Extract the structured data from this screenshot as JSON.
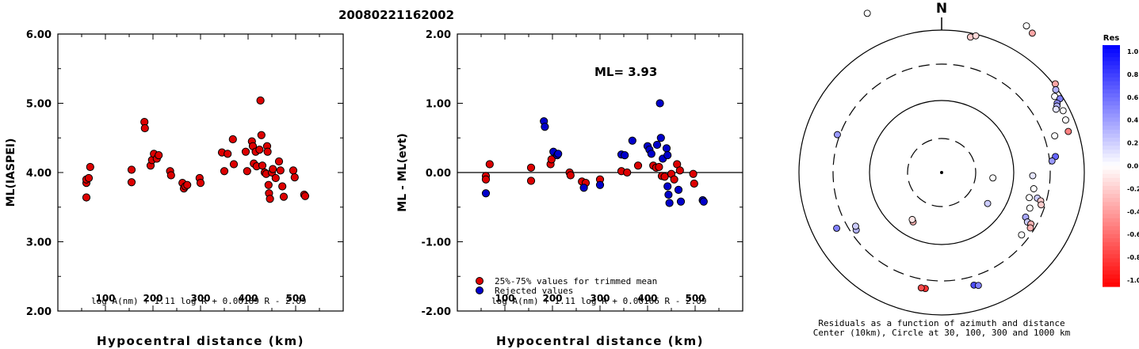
{
  "event_id": "20080221162002",
  "chart_data": [
    {
      "type": "scatter",
      "xlabel": "Hypocentral distance (km)",
      "ylabel": "ML(IASPEI)",
      "xlim": [
        0,
        600
      ],
      "ylim": [
        2.0,
        6.0
      ],
      "yticks": [
        "2.00",
        "3.00",
        "4.00",
        "5.00",
        "6.00"
      ],
      "xticks": [
        "100",
        "200",
        "300",
        "400",
        "500"
      ],
      "formula": "log A(nm) + 1.11 log R + 0.00189 R - 2.09",
      "color": "#dd0000",
      "points": [
        [
          60,
          3.85
        ],
        [
          60,
          3.9
        ],
        [
          60,
          3.64
        ],
        [
          65,
          3.92
        ],
        [
          68,
          4.08
        ],
        [
          155,
          4.04
        ],
        [
          155,
          3.86
        ],
        [
          182,
          4.73
        ],
        [
          183,
          4.64
        ],
        [
          195,
          4.1
        ],
        [
          198,
          4.18
        ],
        [
          202,
          4.27
        ],
        [
          208,
          4.2
        ],
        [
          212,
          4.25
        ],
        [
          236,
          4.02
        ],
        [
          238,
          3.96
        ],
        [
          262,
          3.85
        ],
        [
          265,
          3.77
        ],
        [
          268,
          3.8
        ],
        [
          272,
          3.82
        ],
        [
          298,
          3.92
        ],
        [
          300,
          3.85
        ],
        [
          345,
          4.29
        ],
        [
          350,
          4.02
        ],
        [
          357,
          4.27
        ],
        [
          368,
          4.48
        ],
        [
          370,
          4.12
        ],
        [
          395,
          4.3
        ],
        [
          398,
          4.02
        ],
        [
          408,
          4.45
        ],
        [
          410,
          4.38
        ],
        [
          412,
          4.13
        ],
        [
          416,
          4.3
        ],
        [
          418,
          4.09
        ],
        [
          424,
          4.33
        ],
        [
          426,
          5.04
        ],
        [
          428,
          4.54
        ],
        [
          430,
          4.1
        ],
        [
          435,
          4.0
        ],
        [
          438,
          3.98
        ],
        [
          440,
          4.38
        ],
        [
          441,
          4.3
        ],
        [
          443,
          3.82
        ],
        [
          444,
          3.7
        ],
        [
          446,
          3.62
        ],
        [
          450,
          4.0
        ],
        [
          452,
          4.05
        ],
        [
          458,
          3.92
        ],
        [
          465,
          4.16
        ],
        [
          468,
          4.03
        ],
        [
          472,
          3.8
        ],
        [
          475,
          3.65
        ],
        [
          495,
          4.03
        ],
        [
          498,
          3.93
        ],
        [
          518,
          3.68
        ],
        [
          520,
          3.66
        ]
      ]
    },
    {
      "type": "scatter",
      "xlabel": "Hypocentral distance (km)",
      "ylabel": "ML - ML(evt)",
      "xlim": [
        0,
        600
      ],
      "ylim": [
        -2.0,
        2.0
      ],
      "yticks": [
        "-2.00",
        "-1.00",
        "0.00",
        "1.00",
        "2.00"
      ],
      "xticks": [
        "100",
        "200",
        "300",
        "400",
        "500"
      ],
      "annotation": "ML= 3.93",
      "formula": "log A(nm) + 1.11 log R + 0.00166 R - 2.09",
      "legend": [
        {
          "label": "25%-75% values for trimmed mean",
          "color": "#dd0000"
        },
        {
          "label": "Rejected values",
          "color": "#0000cc"
        }
      ],
      "series": [
        {
          "label": "25%-75% values for trimmed mean",
          "color": "#dd0000",
          "points": [
            [
              60,
              -0.05
            ],
            [
              60,
              -0.1
            ],
            [
              68,
              0.12
            ],
            [
              155,
              0.07
            ],
            [
              155,
              -0.12
            ],
            [
              196,
              0.12
            ],
            [
              198,
              0.19
            ],
            [
              236,
              0.0
            ],
            [
              238,
              -0.04
            ],
            [
              262,
              -0.13
            ],
            [
              270,
              -0.15
            ],
            [
              300,
              -0.1
            ],
            [
              345,
              0.02
            ],
            [
              357,
              0.0
            ],
            [
              380,
              0.1
            ],
            [
              412,
              0.1
            ],
            [
              418,
              0.07
            ],
            [
              424,
              0.08
            ],
            [
              430,
              -0.05
            ],
            [
              436,
              -0.06
            ],
            [
              450,
              -0.02
            ],
            [
              456,
              -0.1
            ],
            [
              462,
              0.12
            ],
            [
              468,
              0.03
            ],
            [
              496,
              -0.02
            ],
            [
              498,
              -0.16
            ]
          ]
        },
        {
          "label": "Rejected values",
          "color": "#0000cc",
          "points": [
            [
              60,
              -0.3
            ],
            [
              182,
              0.74
            ],
            [
              184,
              0.66
            ],
            [
              202,
              0.3
            ],
            [
              210,
              0.25
            ],
            [
              212,
              0.27
            ],
            [
              266,
              -0.22
            ],
            [
              300,
              -0.18
            ],
            [
              345,
              0.26
            ],
            [
              352,
              0.25
            ],
            [
              368,
              0.46
            ],
            [
              400,
              0.38
            ],
            [
              404,
              0.33
            ],
            [
              408,
              0.27
            ],
            [
              420,
              0.4
            ],
            [
              426,
              1.0
            ],
            [
              428,
              0.5
            ],
            [
              432,
              0.2
            ],
            [
              440,
              0.35
            ],
            [
              442,
              0.25
            ],
            [
              442,
              -0.2
            ],
            [
              444,
              -0.32
            ],
            [
              446,
              -0.44
            ],
            [
              465,
              -0.25
            ],
            [
              470,
              -0.42
            ],
            [
              516,
              -0.4
            ],
            [
              518,
              -0.42
            ]
          ]
        }
      ]
    },
    {
      "type": "polar-scatter",
      "north_label": "N",
      "caption_line1": "Residuals as a function of azimuth and distance",
      "caption_line2": "Center (10km), Circle at 30, 100, 300 and 1000 km",
      "rings_km": [
        30,
        100,
        300,
        1000
      ],
      "colorbar_title": "Res",
      "colorbar_ticks": [
        "1.0",
        "0.8",
        "0.6",
        "0.4",
        "0.2",
        "0.0",
        "-0.2",
        "-0.4",
        "-0.6",
        "-0.8",
        "-1.0"
      ],
      "stations": [
        {
          "az": 12,
          "d": 175,
          "res": -0.2
        },
        {
          "az": 14,
          "d": 178,
          "res": -0.15
        },
        {
          "az": 33,
          "d": 210,
          "res": -0.35
        },
        {
          "az": 30,
          "d": 214,
          "res": 0.0
        },
        {
          "az": 335,
          "d": 222,
          "res": 0.0
        },
        {
          "az": 52,
          "d": 182,
          "res": -0.35
        },
        {
          "az": 54,
          "d": 178,
          "res": 0.3
        },
        {
          "az": 56,
          "d": 172,
          "res": 0.0
        },
        {
          "az": 58,
          "d": 176,
          "res": 0.5
        },
        {
          "az": 59,
          "d": 170,
          "res": 0.45
        },
        {
          "az": 60,
          "d": 168,
          "res": 0.3
        },
        {
          "az": 61,
          "d": 165,
          "res": 0.1
        },
        {
          "az": 63,
          "d": 172,
          "res": 0.0
        },
        {
          "az": 67,
          "d": 170,
          "res": 0.0
        },
        {
          "az": 72,
          "d": 150,
          "res": 0.0
        },
        {
          "az": 72,
          "d": 168,
          "res": -0.5
        },
        {
          "az": 82,
          "d": 145,
          "res": 0.6
        },
        {
          "az": 84,
          "d": 140,
          "res": 0.4
        },
        {
          "az": 92,
          "d": 115,
          "res": 0.1
        },
        {
          "az": 96,
          "d": 65,
          "res": 0.0
        },
        {
          "az": 100,
          "d": 118,
          "res": 0.0
        },
        {
          "az": 106,
          "d": 115,
          "res": 0.0
        },
        {
          "az": 105,
          "d": 125,
          "res": 0.2
        },
        {
          "az": 106,
          "d": 130,
          "res": -0.2
        },
        {
          "az": 108,
          "d": 132,
          "res": -0.2
        },
        {
          "az": 112,
          "d": 120,
          "res": 0.0
        },
        {
          "az": 118,
          "d": 120,
          "res": 0.35
        },
        {
          "az": 120,
          "d": 125,
          "res": 0.2
        },
        {
          "az": 120,
          "d": 130,
          "res": -0.3
        },
        {
          "az": 122,
          "d": 132,
          "res": -0.3
        },
        {
          "az": 128,
          "d": 128,
          "res": 0.0
        },
        {
          "az": 124,
          "d": 70,
          "res": 0.2
        },
        {
          "az": 164,
          "d": 148,
          "res": 0.7
        },
        {
          "az": 162,
          "d": 150,
          "res": 0.5
        },
        {
          "az": 188,
          "d": 148,
          "res": -0.8
        },
        {
          "az": 190,
          "d": 148,
          "res": -0.7
        },
        {
          "az": 210,
          "d": 72,
          "res": -0.3
        },
        {
          "az": 212,
          "d": 70,
          "res": -0.1
        },
        {
          "az": 236,
          "d": 130,
          "res": 0.3
        },
        {
          "az": 238,
          "d": 128,
          "res": 0.2
        },
        {
          "az": 242,
          "d": 150,
          "res": 0.5
        },
        {
          "az": 290,
          "d": 140,
          "res": 0.4
        }
      ]
    }
  ]
}
